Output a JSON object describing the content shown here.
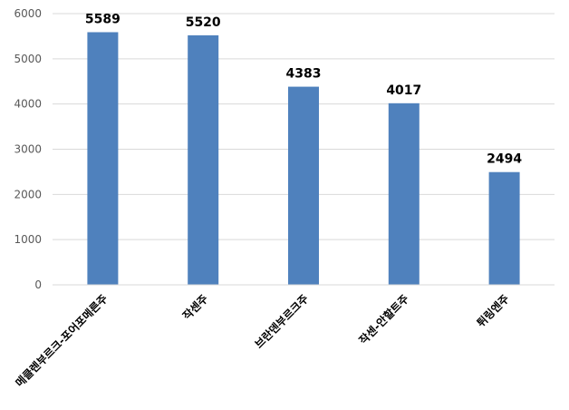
{
  "chart_data": {
    "type": "bar",
    "categories": [
      "메클렌부르크-포어포메른주",
      "작센주",
      "브란덴부르크주",
      "작센-안할트주",
      "튀링엔주"
    ],
    "values": [
      5589,
      5520,
      4383,
      4017,
      2494
    ],
    "title": "",
    "xlabel": "",
    "ylabel": "",
    "ylim": [
      0,
      6000
    ],
    "yticks": [
      0,
      1000,
      2000,
      3000,
      4000,
      5000,
      6000
    ],
    "grid": true,
    "legend": "none",
    "bar_color": "#4f81bd",
    "grid_color": "#d9d9d9"
  }
}
